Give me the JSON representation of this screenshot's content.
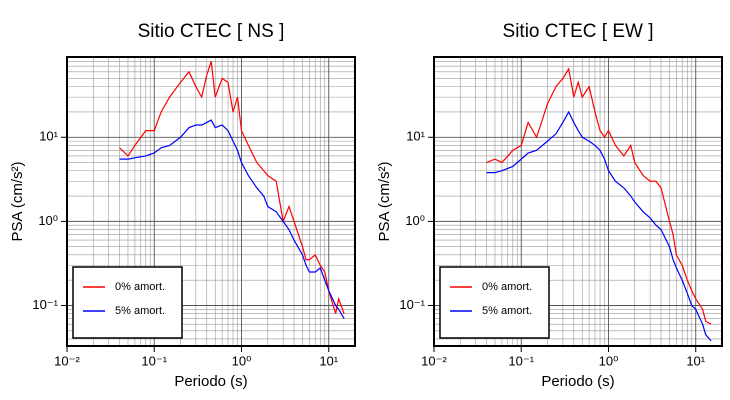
{
  "chart_data": [
    {
      "type": "line",
      "title": "Sitio CTEC [ NS ]",
      "xlabel": "Periodo (s)",
      "ylabel": "PSA (cm/s²)",
      "log_x": true,
      "log_y": true,
      "grid": true,
      "legend": "lower left",
      "xlim": [
        0.01,
        20
      ],
      "ylim": [
        0.033,
        90
      ],
      "xticks": [
        {
          "value": 0.01,
          "label": "10⁻²"
        },
        {
          "value": 0.1,
          "label": "10⁻¹"
        },
        {
          "value": 1,
          "label": "10⁰"
        },
        {
          "value": 10,
          "label": "10¹"
        }
      ],
      "yticks": [
        {
          "value": 0.1,
          "label": "10⁻¹"
        },
        {
          "value": 1,
          "label": "10⁰"
        },
        {
          "value": 10,
          "label": "10¹"
        }
      ],
      "xminor": [
        0.02,
        0.03,
        0.04,
        0.05,
        0.06,
        0.07,
        0.08,
        0.09,
        0.2,
        0.3,
        0.4,
        0.5,
        0.6,
        0.7,
        0.8,
        0.9,
        2,
        3,
        4,
        5,
        6,
        7,
        8,
        9
      ],
      "yminor": [
        0.04,
        0.05,
        0.06,
        0.07,
        0.08,
        0.09,
        0.2,
        0.3,
        0.4,
        0.5,
        0.6,
        0.7,
        0.8,
        0.9,
        2,
        3,
        4,
        5,
        6,
        7,
        8,
        9,
        20,
        30,
        40,
        50,
        60,
        70,
        80
      ],
      "x": [
        0.04,
        0.05,
        0.06,
        0.08,
        0.1,
        0.12,
        0.15,
        0.2,
        0.25,
        0.3,
        0.35,
        0.4,
        0.45,
        0.5,
        0.6,
        0.7,
        0.8,
        0.9,
        1.0,
        1.2,
        1.5,
        1.8,
        2,
        2.5,
        3,
        3.5,
        4,
        5,
        5.5,
        6,
        7,
        8,
        9,
        10,
        12,
        13,
        15
      ],
      "series": [
        {
          "name": "0% amort.",
          "color": "#ff0000",
          "values": [
            7.5,
            6,
            8,
            12,
            12,
            20,
            30,
            45,
            60,
            40,
            30,
            55,
            80,
            30,
            50,
            45,
            20,
            30,
            12,
            8,
            5,
            4,
            3.5,
            3,
            1,
            1.5,
            1.0,
            0.5,
            0.35,
            0.35,
            0.4,
            0.3,
            0.25,
            0.15,
            0.08,
            0.12,
            0.08
          ]
        },
        {
          "name": "5% amort.",
          "color": "#0000ff",
          "values": [
            5.5,
            5.5,
            5.7,
            6,
            6.5,
            7.5,
            8,
            10,
            13,
            14,
            14,
            15,
            16,
            13,
            14,
            12,
            9,
            7,
            5,
            3.5,
            2.5,
            2.0,
            1.5,
            1.3,
            1.0,
            0.8,
            0.6,
            0.4,
            0.3,
            0.25,
            0.25,
            0.28,
            0.2,
            0.15,
            0.1,
            0.09,
            0.07
          ]
        }
      ]
    },
    {
      "type": "line",
      "title": "Sitio CTEC [ EW ]",
      "xlabel": "Periodo (s)",
      "ylabel": "PSA (cm/s²)",
      "log_x": true,
      "log_y": true,
      "grid": true,
      "legend": "lower left",
      "xlim": [
        0.01,
        20
      ],
      "ylim": [
        0.033,
        90
      ],
      "xticks": [
        {
          "value": 0.01,
          "label": "10⁻²"
        },
        {
          "value": 0.1,
          "label": "10⁻¹"
        },
        {
          "value": 1,
          "label": "10⁰"
        },
        {
          "value": 10,
          "label": "10¹"
        }
      ],
      "yticks": [
        {
          "value": 0.1,
          "label": "10⁻¹"
        },
        {
          "value": 1,
          "label": "10⁰"
        },
        {
          "value": 10,
          "label": "10¹"
        }
      ],
      "xminor": [
        0.02,
        0.03,
        0.04,
        0.05,
        0.06,
        0.07,
        0.08,
        0.09,
        0.2,
        0.3,
        0.4,
        0.5,
        0.6,
        0.7,
        0.8,
        0.9,
        2,
        3,
        4,
        5,
        6,
        7,
        8,
        9
      ],
      "yminor": [
        0.04,
        0.05,
        0.06,
        0.07,
        0.08,
        0.09,
        0.2,
        0.3,
        0.4,
        0.5,
        0.6,
        0.7,
        0.8,
        0.9,
        2,
        3,
        4,
        5,
        6,
        7,
        8,
        9,
        20,
        30,
        40,
        50,
        60,
        70,
        80
      ],
      "x": [
        0.04,
        0.05,
        0.06,
        0.08,
        0.1,
        0.12,
        0.15,
        0.2,
        0.25,
        0.3,
        0.35,
        0.4,
        0.45,
        0.5,
        0.6,
        0.7,
        0.8,
        0.9,
        1.0,
        1.2,
        1.5,
        1.8,
        2,
        2.5,
        3,
        3.5,
        4,
        5,
        5.5,
        6,
        7,
        8,
        9,
        10,
        12,
        13,
        15
      ],
      "series": [
        {
          "name": "0% amort.",
          "color": "#ff0000",
          "values": [
            5,
            5.5,
            5,
            7,
            8,
            15,
            10,
            25,
            40,
            50,
            65,
            30,
            45,
            30,
            40,
            20,
            12,
            10,
            12,
            8,
            6,
            8,
            5,
            3.5,
            3,
            3,
            2.5,
            1.0,
            0.7,
            0.4,
            0.3,
            0.2,
            0.15,
            0.12,
            0.09,
            0.065,
            0.06
          ]
        },
        {
          "name": "5% amort.",
          "color": "#0000ff",
          "values": [
            3.8,
            3.8,
            4,
            4.5,
            5.5,
            6.5,
            7,
            9,
            11,
            15,
            20,
            15,
            12,
            10,
            9,
            8,
            7,
            5.5,
            4,
            3,
            2.5,
            2.0,
            1.7,
            1.3,
            1.1,
            0.9,
            0.8,
            0.5,
            0.35,
            0.28,
            0.2,
            0.14,
            0.1,
            0.09,
            0.06,
            0.045,
            0.038
          ]
        }
      ]
    }
  ]
}
